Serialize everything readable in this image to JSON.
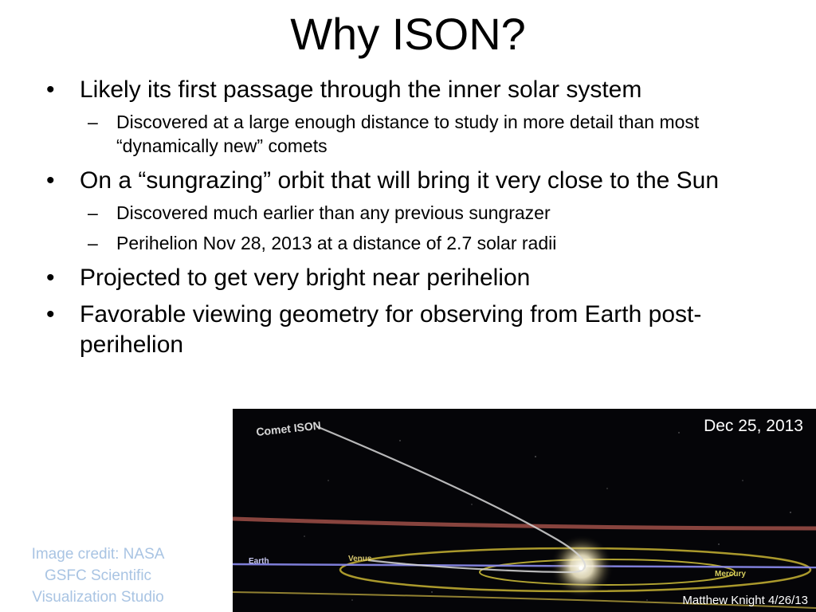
{
  "slide": {
    "title": "Why ISON?",
    "bullets": [
      {
        "text": "Likely its first passage through the inner solar system",
        "subs": [
          "Discovered at a large enough distance to study in more detail than most “dynamically new” comets"
        ]
      },
      {
        "text": "On a “sungrazing” orbit that will bring it very close to the Sun",
        "subs": [
          "Discovered much earlier than any previous sungrazer",
          "Perihelion Nov 28, 2013 at a distance of 2.7 solar radii"
        ]
      },
      {
        "text": "Projected to get very bright near perihelion",
        "subs": []
      },
      {
        "text": "Favorable viewing geometry for observing from Earth post-perihelion",
        "subs": []
      }
    ],
    "bullet_marker": "•",
    "sub_marker": "–"
  },
  "visualization": {
    "date": "Dec 25, 2013",
    "author": "Matthew Knight 4/26/13",
    "labels": {
      "comet": "Comet ISON",
      "earth": "Earth",
      "venus": "Venus",
      "mercury": "Mercury"
    },
    "colors": {
      "earth_orbit": "#8c8cf0",
      "venus_orbit": "#c8b432",
      "mercury_orbit": "#d2c23a",
      "mars_orbit": "#b45a50",
      "comet_path": "#d8d8d8",
      "sun": "#fffbe8"
    }
  },
  "credit": {
    "line1": "Image credit: NASA",
    "line2": "GSFC Scientific",
    "line3": "Visualization Studio"
  }
}
